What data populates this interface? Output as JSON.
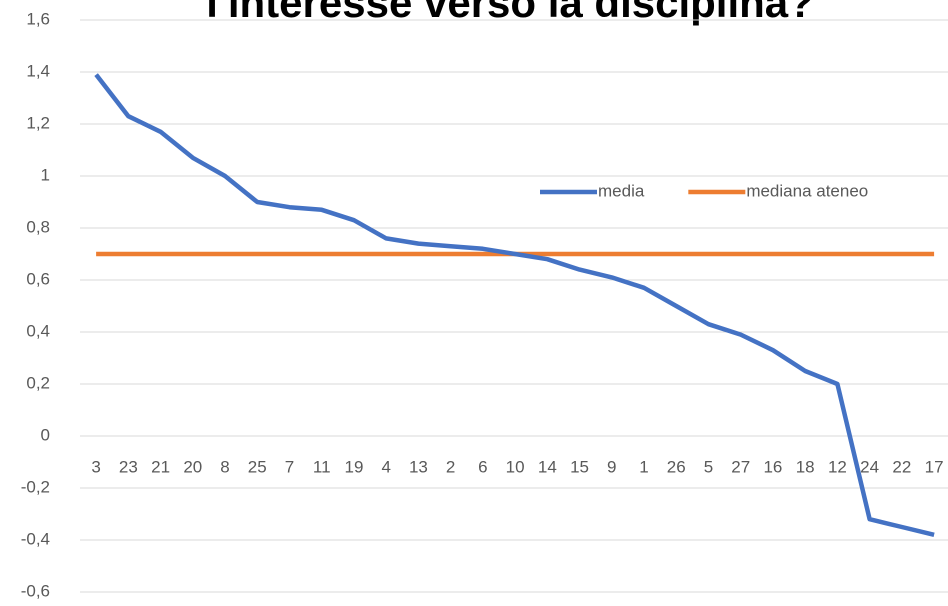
{
  "chart_data": {
    "type": "line",
    "title": "l'interesse verso la disciplina?",
    "categories": [
      "3",
      "23",
      "21",
      "20",
      "8",
      "25",
      "7",
      "11",
      "19",
      "4",
      "13",
      "2",
      "6",
      "10",
      "14",
      "15",
      "9",
      "1",
      "26",
      "5",
      "27",
      "16",
      "18",
      "12",
      "24",
      "22",
      "17"
    ],
    "series": [
      {
        "name": "media",
        "color": "#4472c4",
        "values": [
          1.39,
          1.23,
          1.17,
          1.07,
          1.0,
          0.9,
          0.88,
          0.87,
          0.83,
          0.76,
          0.74,
          0.73,
          0.72,
          0.7,
          0.68,
          0.64,
          0.61,
          0.57,
          0.5,
          0.43,
          0.39,
          0.33,
          0.25,
          0.2,
          -0.32,
          -0.35,
          -0.38
        ]
      },
      {
        "name": "mediana ateneo",
        "color": "#ed7d31",
        "values": [
          0.7,
          0.7,
          0.7,
          0.7,
          0.7,
          0.7,
          0.7,
          0.7,
          0.7,
          0.7,
          0.7,
          0.7,
          0.7,
          0.7,
          0.7,
          0.7,
          0.7,
          0.7,
          0.7,
          0.7,
          0.7,
          0.7,
          0.7,
          0.7,
          0.7,
          0.7,
          0.7
        ]
      }
    ],
    "ylim": [
      -0.6,
      1.6
    ],
    "yticks": [
      {
        "value": -0.6,
        "label": "-0,6"
      },
      {
        "value": -0.4,
        "label": "-0,4"
      },
      {
        "value": -0.2,
        "label": "-0,2"
      },
      0,
      {
        "value": 0.2,
        "label": "0,2"
      },
      {
        "value": 0.4,
        "label": "0,4"
      },
      {
        "value": 0.6,
        "label": "0,6"
      },
      {
        "value": 0.8,
        "label": "0,8"
      },
      1,
      {
        "value": 1.2,
        "label": "1,2"
      },
      {
        "value": 1.4,
        "label": "1,4"
      },
      {
        "value": 1.6,
        "label": "1,6"
      }
    ],
    "grid": true,
    "legend": "inside"
  }
}
